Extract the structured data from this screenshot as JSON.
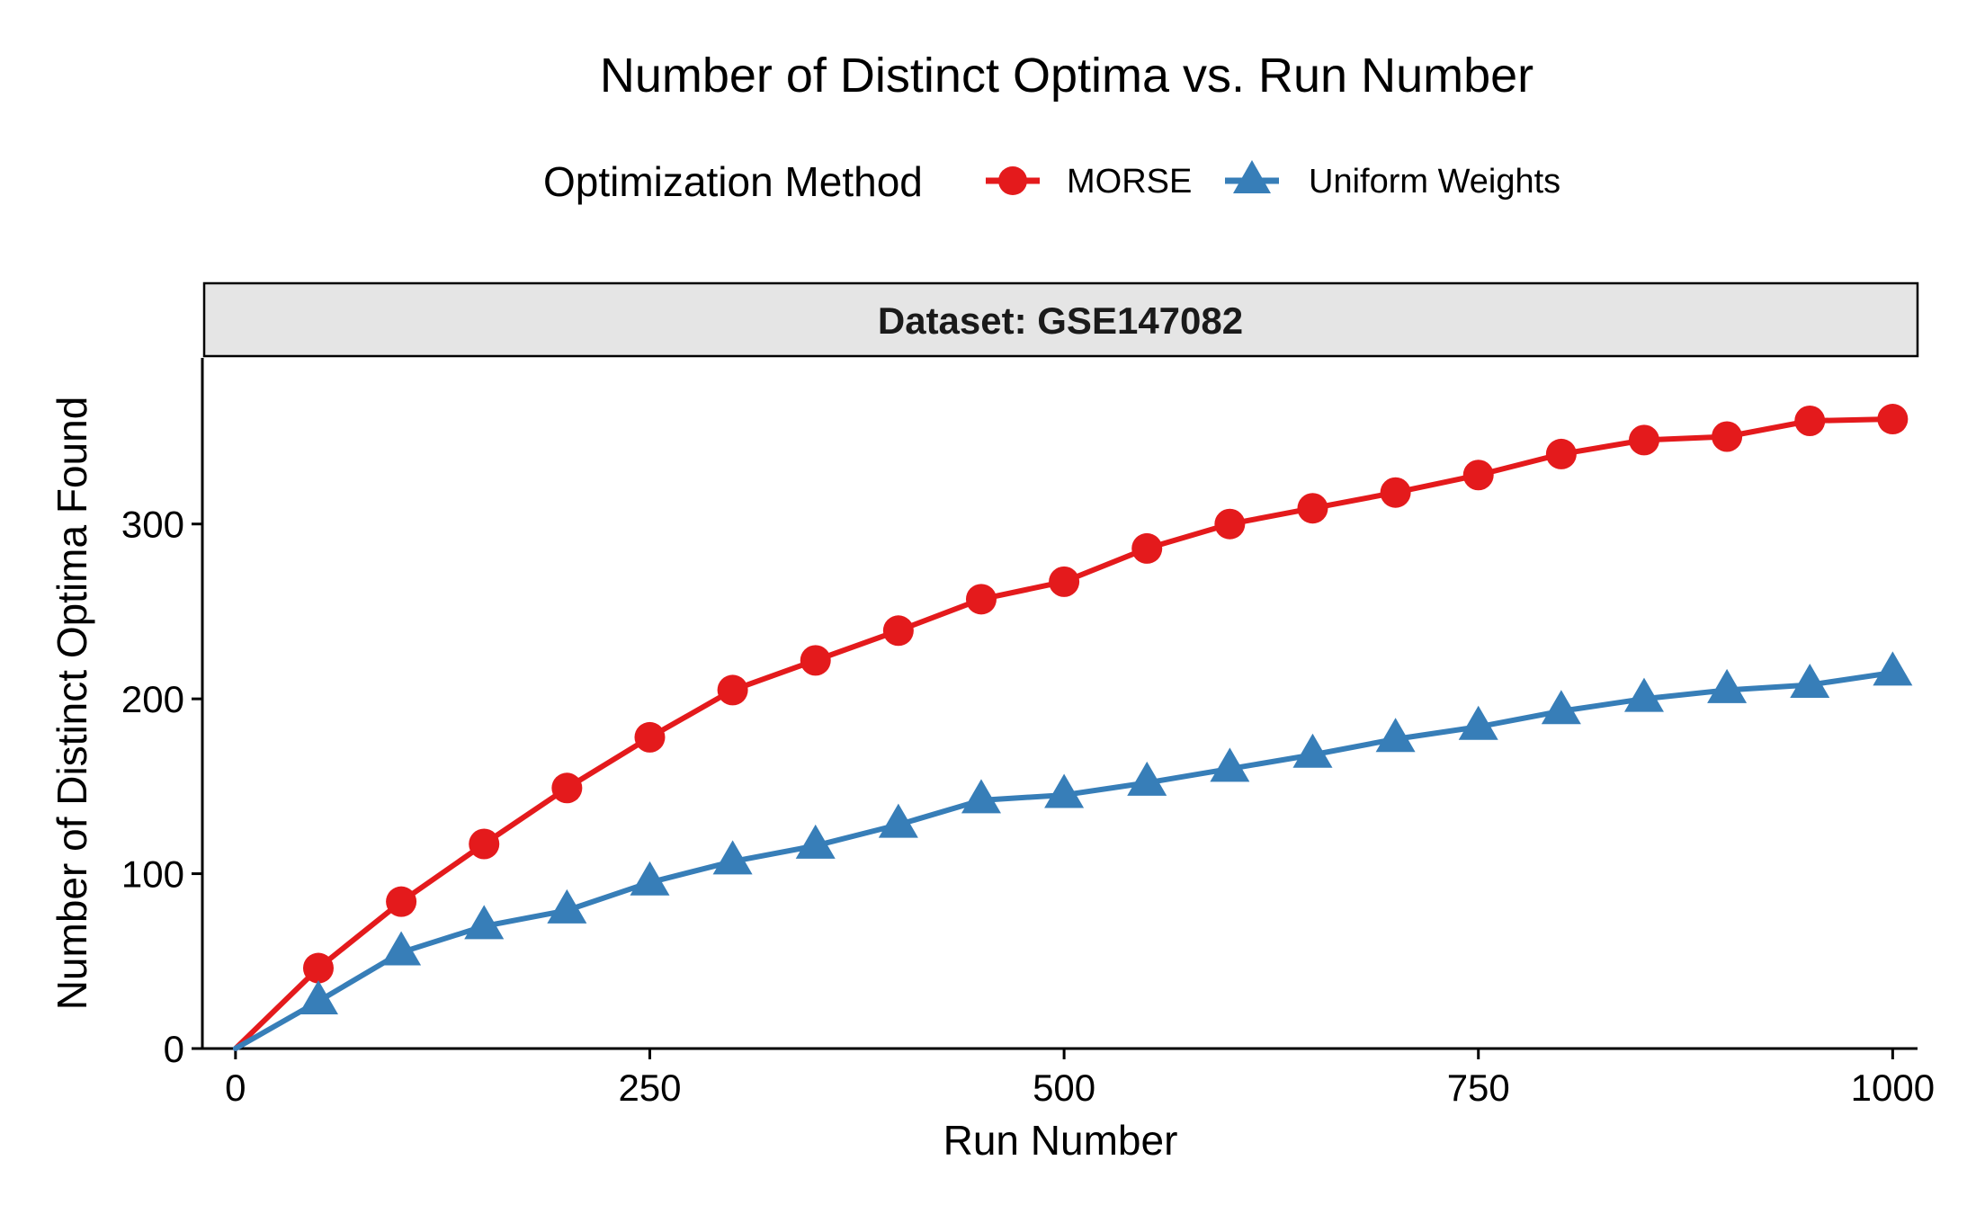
{
  "chart_data": {
    "type": "line",
    "title": "Number of Distinct Optima vs. Run Number",
    "facet_label": "Dataset: GSE147082",
    "xlabel": "Run Number",
    "ylabel": "Number of Distinct Optima Found",
    "xlim": [
      -20,
      1015
    ],
    "ylim": [
      0,
      395
    ],
    "x_ticks": [
      0,
      250,
      500,
      750,
      1000
    ],
    "x_tick_labels": [
      "0",
      "250",
      "500",
      "750",
      "1000"
    ],
    "y_ticks": [
      0,
      100,
      200,
      300
    ],
    "y_tick_labels": [
      "0",
      "100",
      "200",
      "300"
    ],
    "grid": false,
    "legend": {
      "title": "Optimization Method",
      "position": "top"
    },
    "series": [
      {
        "name": "MORSE",
        "color": "#E41A1C",
        "marker": "circle",
        "x": [
          0,
          50,
          100,
          150,
          200,
          250,
          300,
          350,
          400,
          450,
          500,
          550,
          600,
          650,
          700,
          750,
          800,
          850,
          900,
          950,
          1000
        ],
        "y": [
          0,
          46,
          84,
          117,
          149,
          178,
          205,
          222,
          239,
          257,
          267,
          286,
          300,
          309,
          318,
          328,
          340,
          348,
          350,
          359,
          360
        ]
      },
      {
        "name": "Uniform Weights",
        "color": "#377EB8",
        "marker": "triangle",
        "x": [
          0,
          50,
          100,
          150,
          200,
          250,
          300,
          350,
          400,
          450,
          500,
          550,
          600,
          650,
          700,
          750,
          800,
          850,
          900,
          950,
          1000
        ],
        "y": [
          0,
          27,
          55,
          70,
          79,
          95,
          107,
          116,
          128,
          142,
          145,
          152,
          160,
          168,
          177,
          184,
          193,
          200,
          205,
          208,
          215
        ]
      }
    ]
  }
}
